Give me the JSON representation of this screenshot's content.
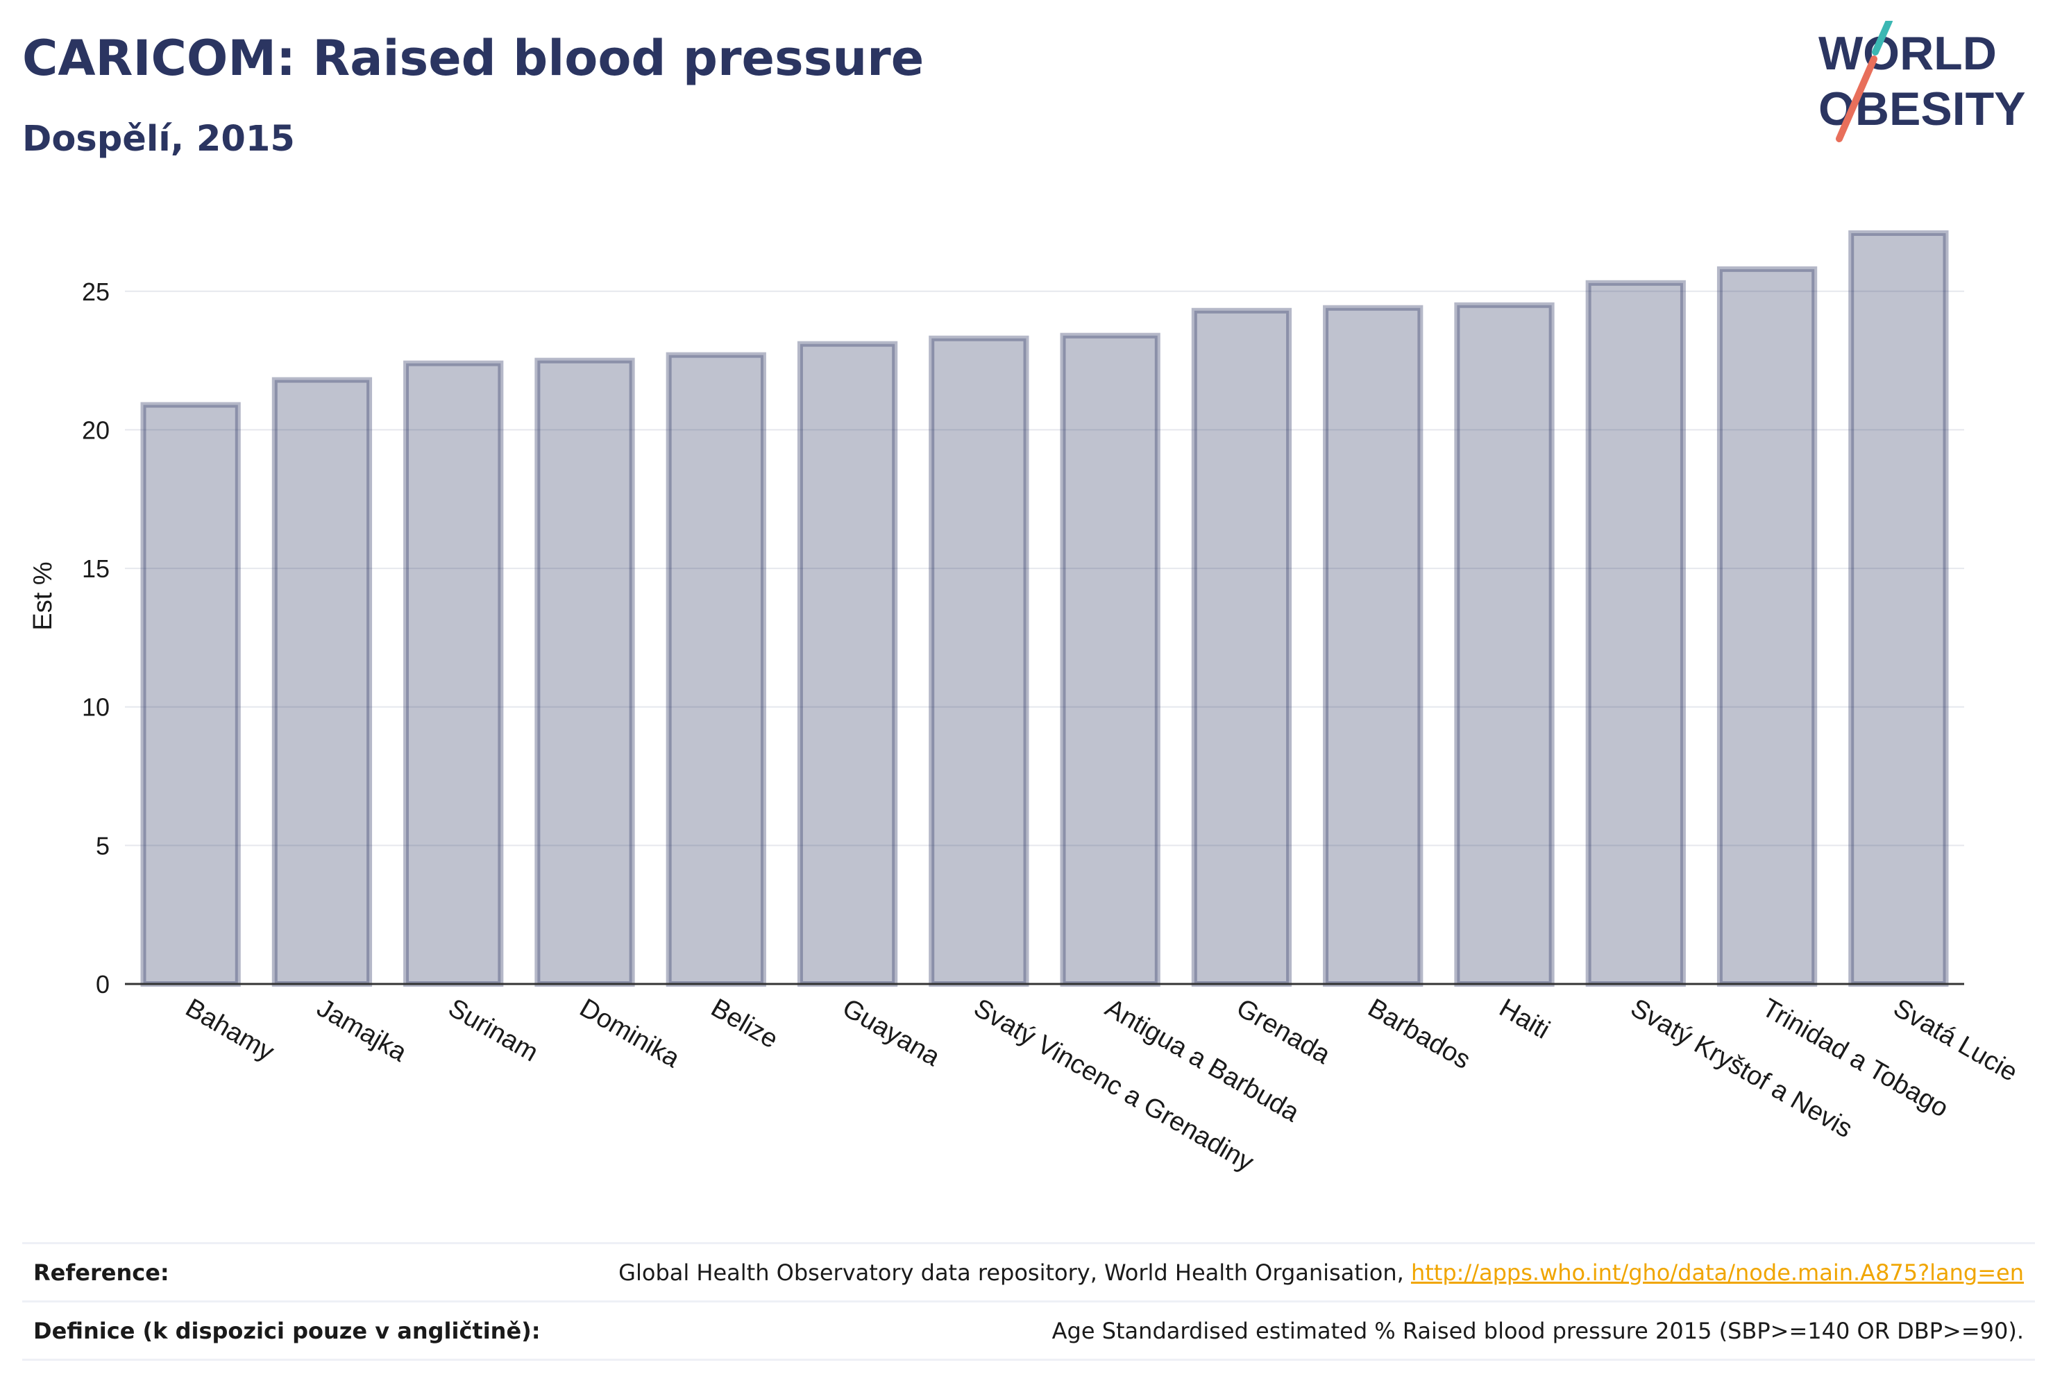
{
  "title": "CARICOM: Raised blood pressure",
  "subtitle": "Dospělí, 2015",
  "logo": {
    "line1": "WORLD",
    "line2": "OBESITY"
  },
  "chart_data": {
    "type": "bar",
    "categories": [
      "Bahamy",
      "Jamajka",
      "Surinam",
      "Dominika",
      "Belize",
      "Guayana",
      "Svatý Vincenc a Grenadiny",
      "Antigua a Barbuda",
      "Grenada",
      "Barbados",
      "Haiti",
      "Svatý Kryštof a Nevis",
      "Trinidad a Tobago",
      "Svatá Lucie"
    ],
    "values": [
      20.9,
      21.8,
      22.4,
      22.5,
      22.7,
      23.1,
      23.3,
      23.4,
      24.3,
      24.4,
      24.5,
      25.3,
      25.8,
      27.1
    ],
    "ylabel": "Est %",
    "xlabel": "",
    "ylim": [
      0,
      28
    ],
    "yticks": [
      0,
      5,
      10,
      15,
      20,
      25
    ],
    "grid": true,
    "bar_fill": "#2b3561",
    "bar_fill_opacity": 0.3,
    "bar_stroke": "#2b3561",
    "bar_stroke_opacity": 0.35
  },
  "reference": {
    "label": "Reference:",
    "text": "Global Health Observatory data repository, World Health Organisation, ",
    "link": "http://apps.who.int/gho/data/node.main.A875?lang=en"
  },
  "definition": {
    "label": "Definice (k dispozici pouze v angličtině):",
    "text": "Age Standardised estimated % Raised blood pressure 2015 (SBP>=140 OR DBP>=90)."
  },
  "colors": {
    "title": "#2b3561",
    "link": "#f0a500",
    "logo_teal": "#3bb7b3",
    "logo_coral": "#e86f5b"
  }
}
